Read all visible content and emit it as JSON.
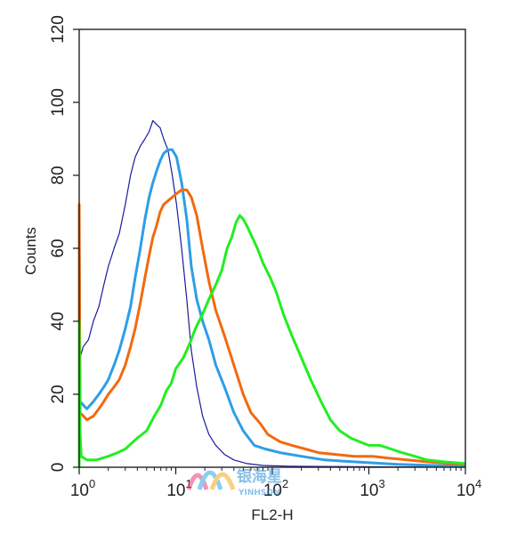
{
  "chart_data": {
    "type": "line",
    "xlabel": "FL2-H",
    "ylabel": "Counts",
    "xscale": "log",
    "xlim": [
      1,
      10000
    ],
    "ylim": [
      0,
      120
    ],
    "yticks": [
      0,
      20,
      40,
      60,
      80,
      100,
      120
    ],
    "xticks": [
      {
        "base": "10",
        "exp": "0",
        "value": 1
      },
      {
        "base": "10",
        "exp": "1",
        "value": 10
      },
      {
        "base": "10",
        "exp": "2",
        "value": 100
      },
      {
        "base": "10",
        "exp": "3",
        "value": 1000
      },
      {
        "base": "10",
        "exp": "4",
        "value": 10000
      }
    ],
    "grid": false,
    "legend": "none",
    "series": [
      {
        "color": "#1a1aa0",
        "width": 1.2,
        "points": [
          [
            1.0,
            70
          ],
          [
            1.02,
            30
          ],
          [
            1.1,
            33
          ],
          [
            1.25,
            35
          ],
          [
            1.4,
            40
          ],
          [
            1.6,
            44
          ],
          [
            1.8,
            50
          ],
          [
            2.0,
            55
          ],
          [
            2.3,
            60
          ],
          [
            2.6,
            64
          ],
          [
            3.0,
            72
          ],
          [
            3.4,
            80
          ],
          [
            3.8,
            85
          ],
          [
            4.3,
            88
          ],
          [
            4.8,
            90
          ],
          [
            5.3,
            92
          ],
          [
            5.8,
            95
          ],
          [
            6.3,
            94
          ],
          [
            6.9,
            93
          ],
          [
            7.5,
            90
          ],
          [
            8.3,
            87
          ],
          [
            9.2,
            80
          ],
          [
            10.2,
            72
          ],
          [
            11.5,
            60
          ],
          [
            13.0,
            46
          ],
          [
            14.5,
            32
          ],
          [
            16.5,
            22
          ],
          [
            19,
            14
          ],
          [
            22,
            9
          ],
          [
            26,
            6
          ],
          [
            32,
            3.5
          ],
          [
            40,
            2
          ],
          [
            55,
            1
          ],
          [
            80,
            0.5
          ],
          [
            150,
            0.3
          ],
          [
            400,
            0.2
          ],
          [
            10000,
            0
          ]
        ]
      },
      {
        "color": "#2e9ee6",
        "width": 3,
        "points": [
          [
            1.0,
            62
          ],
          [
            1.02,
            18
          ],
          [
            1.2,
            16
          ],
          [
            1.4,
            18
          ],
          [
            1.6,
            20
          ],
          [
            1.8,
            22
          ],
          [
            2.0,
            24
          ],
          [
            2.3,
            28
          ],
          [
            2.6,
            32
          ],
          [
            3.0,
            38
          ],
          [
            3.4,
            44
          ],
          [
            3.8,
            52
          ],
          [
            4.3,
            60
          ],
          [
            4.8,
            68
          ],
          [
            5.3,
            74
          ],
          [
            5.8,
            78
          ],
          [
            6.3,
            81
          ],
          [
            6.9,
            84
          ],
          [
            7.5,
            86
          ],
          [
            8.3,
            87
          ],
          [
            9.2,
            87
          ],
          [
            10.2,
            85
          ],
          [
            11.5,
            78
          ],
          [
            13.0,
            68
          ],
          [
            14.5,
            55
          ],
          [
            16.5,
            46
          ],
          [
            19,
            40
          ],
          [
            22,
            35
          ],
          [
            26,
            28
          ],
          [
            32,
            22
          ],
          [
            40,
            15
          ],
          [
            50,
            10
          ],
          [
            65,
            6
          ],
          [
            85,
            5
          ],
          [
            120,
            4
          ],
          [
            200,
            3
          ],
          [
            350,
            2
          ],
          [
            700,
            1.5
          ],
          [
            2000,
            0.8
          ],
          [
            6000,
            0.4
          ],
          [
            10000,
            0.3
          ]
        ]
      },
      {
        "color": "#f26a10",
        "width": 3,
        "points": [
          [
            1.0,
            72
          ],
          [
            1.02,
            15
          ],
          [
            1.2,
            13
          ],
          [
            1.4,
            14
          ],
          [
            1.6,
            16
          ],
          [
            1.8,
            18
          ],
          [
            2.0,
            20
          ],
          [
            2.3,
            22
          ],
          [
            2.6,
            24
          ],
          [
            3.0,
            28
          ],
          [
            3.4,
            33
          ],
          [
            3.8,
            38
          ],
          [
            4.3,
            45
          ],
          [
            4.8,
            52
          ],
          [
            5.3,
            58
          ],
          [
            5.8,
            63
          ],
          [
            6.3,
            66
          ],
          [
            6.9,
            70
          ],
          [
            7.5,
            72
          ],
          [
            8.3,
            73
          ],
          [
            9.2,
            74
          ],
          [
            10.2,
            75
          ],
          [
            11.5,
            76
          ],
          [
            13.0,
            76
          ],
          [
            14.5,
            74
          ],
          [
            16.5,
            69
          ],
          [
            19,
            60
          ],
          [
            22,
            51
          ],
          [
            26,
            43
          ],
          [
            32,
            36
          ],
          [
            40,
            28
          ],
          [
            50,
            20
          ],
          [
            60,
            15
          ],
          [
            75,
            12
          ],
          [
            90,
            9
          ],
          [
            120,
            7
          ],
          [
            160,
            6
          ],
          [
            220,
            5
          ],
          [
            300,
            4
          ],
          [
            450,
            3.5
          ],
          [
            700,
            3
          ],
          [
            1100,
            3
          ],
          [
            1600,
            2.5
          ],
          [
            2500,
            2
          ],
          [
            4000,
            1.5
          ],
          [
            7000,
            1
          ],
          [
            10000,
            0.8
          ]
        ]
      },
      {
        "color": "#22ee22",
        "width": 3,
        "points": [
          [
            1.0,
            40
          ],
          [
            1.02,
            10
          ],
          [
            1.05,
            3
          ],
          [
            1.2,
            2
          ],
          [
            1.5,
            2
          ],
          [
            2.0,
            3
          ],
          [
            2.5,
            4
          ],
          [
            3.0,
            5
          ],
          [
            4,
            8
          ],
          [
            5,
            10
          ],
          [
            6,
            14
          ],
          [
            7,
            17
          ],
          [
            8,
            21
          ],
          [
            9,
            23
          ],
          [
            10,
            27
          ],
          [
            12,
            30
          ],
          [
            14,
            34
          ],
          [
            16,
            38
          ],
          [
            19,
            42
          ],
          [
            22,
            46
          ],
          [
            26,
            50
          ],
          [
            30,
            54
          ],
          [
            34,
            60
          ],
          [
            38,
            63
          ],
          [
            42,
            67
          ],
          [
            46,
            69
          ],
          [
            50,
            68
          ],
          [
            55,
            66
          ],
          [
            62,
            63
          ],
          [
            70,
            60
          ],
          [
            80,
            56
          ],
          [
            95,
            52
          ],
          [
            110,
            48
          ],
          [
            130,
            42
          ],
          [
            160,
            36
          ],
          [
            200,
            30
          ],
          [
            250,
            24
          ],
          [
            320,
            18
          ],
          [
            400,
            13
          ],
          [
            500,
            10
          ],
          [
            650,
            8
          ],
          [
            800,
            7
          ],
          [
            1000,
            6
          ],
          [
            1300,
            6
          ],
          [
            1700,
            5
          ],
          [
            2200,
            4
          ],
          [
            3000,
            3
          ],
          [
            4000,
            2
          ],
          [
            6000,
            1.5
          ],
          [
            10000,
            1
          ]
        ]
      }
    ]
  },
  "watermark": {
    "text_main": "银海星",
    "text_sub": "YINHSON"
  }
}
